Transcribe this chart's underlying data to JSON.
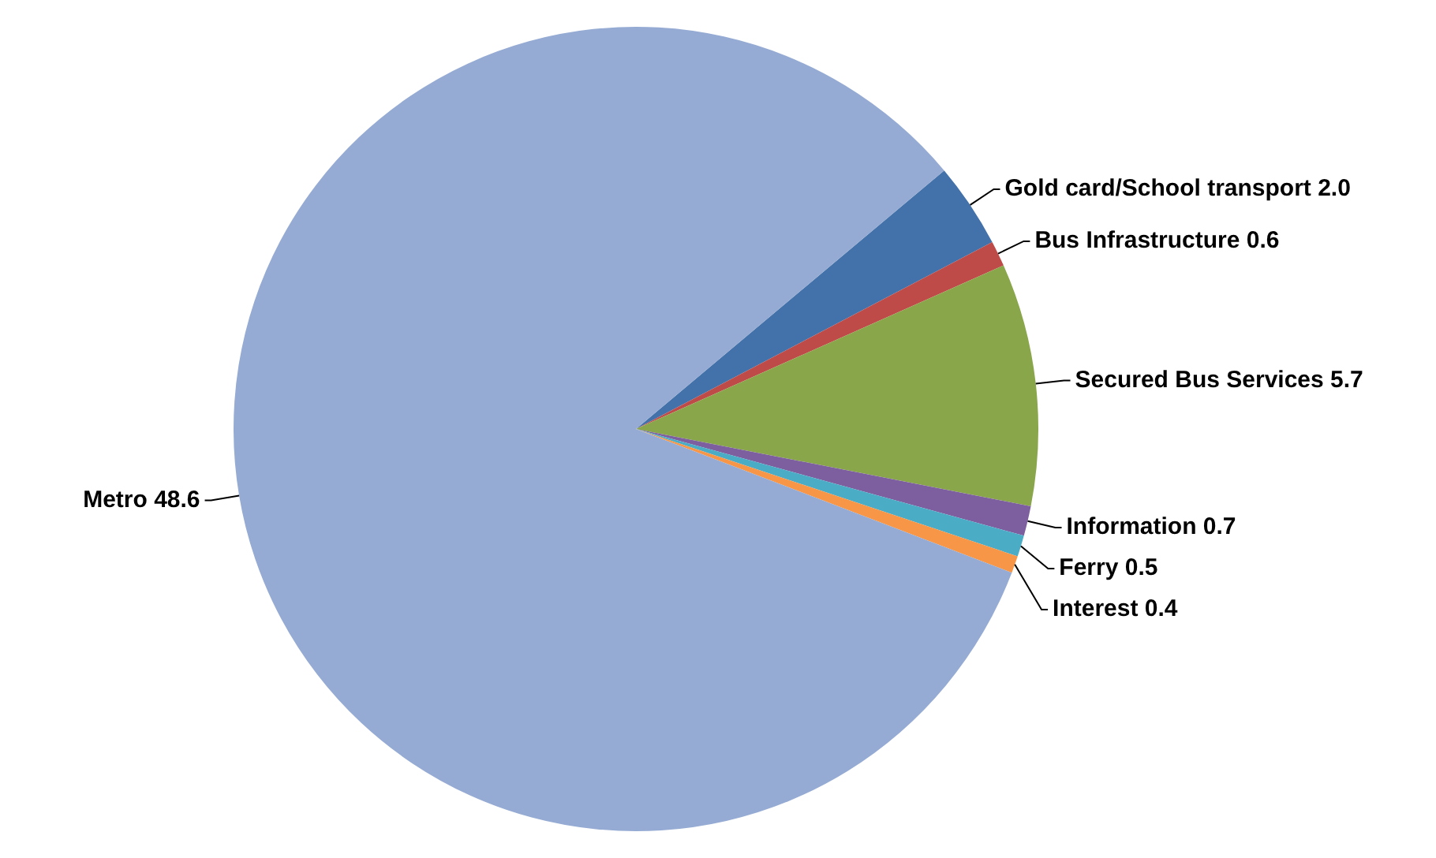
{
  "chart_data": {
    "type": "pie",
    "categories": [
      "Gold card/School transport",
      "Bus Infrastructure",
      "Secured Bus Services",
      "Information",
      "Ferry",
      "Interest",
      "Metro"
    ],
    "values": [
      2.0,
      0.6,
      5.7,
      0.7,
      0.5,
      0.4,
      48.6
    ],
    "value_labels": [
      "2.0",
      "0.6",
      "5.7",
      "0.7",
      "0.5",
      "0.4",
      "48.6"
    ],
    "colors": [
      "#4371a9",
      "#be4b48",
      "#8aa64b",
      "#7d5fa0",
      "#4bacc6",
      "#f79646",
      "#95abd3"
    ],
    "legend": false
  }
}
